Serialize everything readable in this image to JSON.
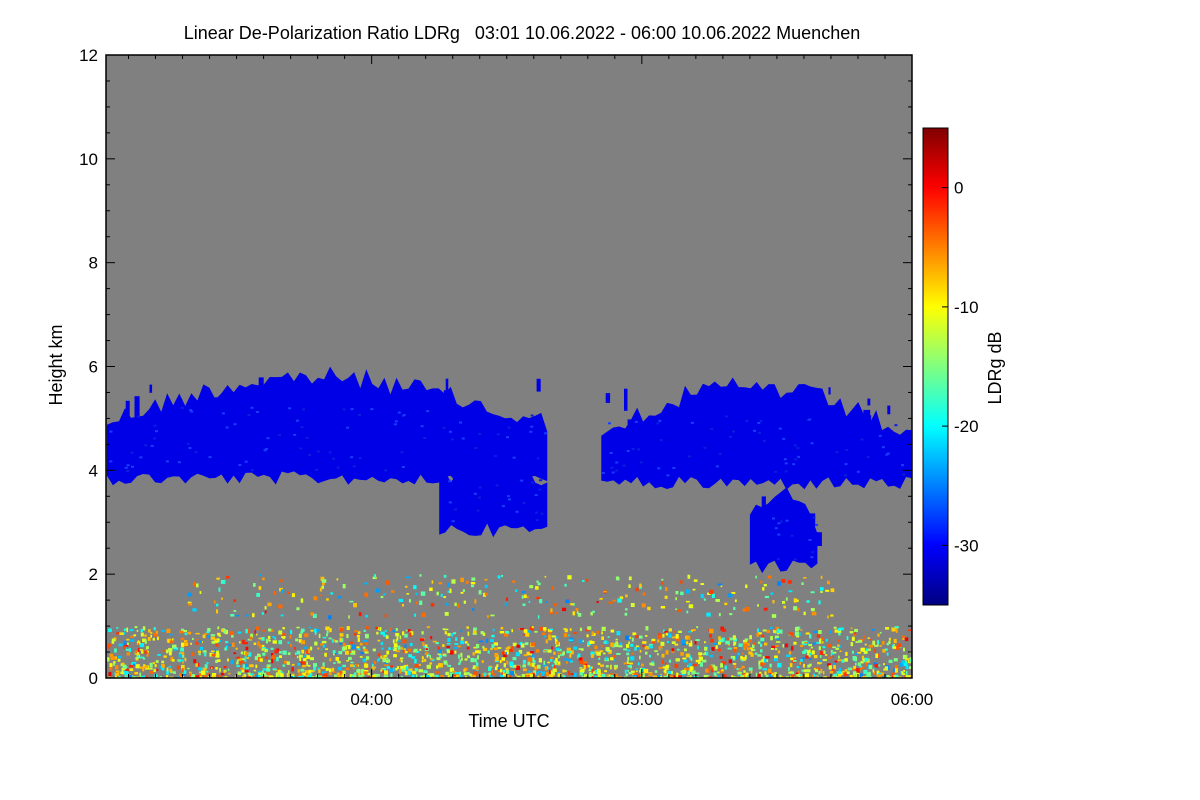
{
  "chart_data": {
    "type": "heatmap",
    "title": "Linear De-Polarization Ratio LDRg   03:01 10.06.2022 - 06:00 10.06.2022 Muenchen",
    "xlabel": "Time UTC",
    "ylabel": "Height km",
    "xlim_hours": [
      3.0167,
      6.0
    ],
    "ylim_km": [
      0,
      12
    ],
    "x_ticks": [
      {
        "value": 4.0,
        "label": "04:00"
      },
      {
        "value": 5.0,
        "label": "05:00"
      },
      {
        "value": 6.0,
        "label": "06:00"
      }
    ],
    "y_ticks": [
      {
        "value": 0,
        "label": "0"
      },
      {
        "value": 2,
        "label": "2"
      },
      {
        "value": 4,
        "label": "4"
      },
      {
        "value": 6,
        "label": "6"
      },
      {
        "value": 8,
        "label": "8"
      },
      {
        "value": 10,
        "label": "10"
      },
      {
        "value": 12,
        "label": "12"
      }
    ],
    "background_color": "#808080",
    "colorbar": {
      "label": "LDRg dB",
      "range": [
        -35,
        5
      ],
      "ticks": [
        {
          "value": 0,
          "label": "0"
        },
        {
          "value": -10,
          "label": "-10"
        },
        {
          "value": -20,
          "label": "-20"
        },
        {
          "value": -30,
          "label": "-30"
        }
      ]
    },
    "features": [
      {
        "name": "ice-cloud-layer-1",
        "ldr_db": -31,
        "time_range": [
          3.02,
          4.65
        ],
        "base_km": 3.9,
        "top_km": 5.8
      },
      {
        "name": "ice-cloud-fallstreak",
        "ldr_db": -31,
        "time_range": [
          4.25,
          4.65
        ],
        "base_km": 2.9,
        "top_km": 4.3
      },
      {
        "name": "ice-cloud-layer-2",
        "ldr_db": -31,
        "time_range": [
          4.85,
          6.0
        ],
        "base_km": 3.8,
        "top_km": 5.6
      },
      {
        "name": "ice-cloud-fallstreak-2",
        "ldr_db": -31,
        "time_range": [
          5.4,
          5.65
        ],
        "base_km": 2.2,
        "top_km": 3.6
      },
      {
        "name": "aerosol-boundary-layer",
        "ldr_db": -12,
        "time_range": [
          3.02,
          6.0
        ],
        "base_km": 0.0,
        "top_km": 1.0
      },
      {
        "name": "elevated-aerosol-layer",
        "ldr_db": -18,
        "time_range": [
          3.3,
          5.7
        ],
        "base_km": 1.2,
        "top_km": 2.0
      }
    ]
  }
}
